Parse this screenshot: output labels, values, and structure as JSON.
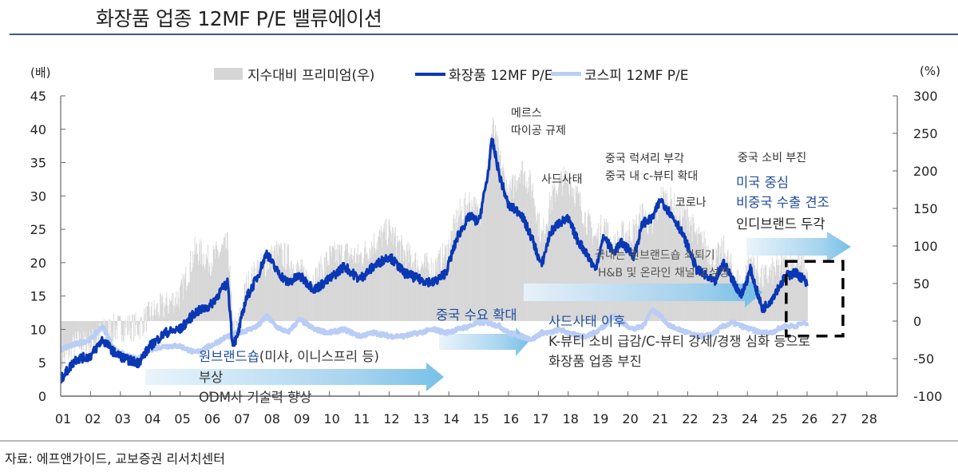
{
  "title": "화장품 업종 12MF P/E 밸류에이션",
  "source": "자료: 에프앤가이드, 교보증권 리서치센터",
  "chart_data": {
    "type": "line",
    "title": "화장품 업종 12MF P/E 밸류에이션",
    "left_unit": "(배)",
    "right_unit": "(%)",
    "xlabel": "",
    "ylabel_left": "P/E (배)",
    "ylabel_right": "지수대비 프리미엄 (%)",
    "ylim_left": [
      0,
      45
    ],
    "ylim_right": [
      -100,
      300
    ],
    "left_ticks": [
      "0",
      "5",
      "10",
      "15",
      "20",
      "25",
      "30",
      "35",
      "40",
      "45"
    ],
    "right_ticks": [
      "-100",
      "-50",
      "0",
      "50",
      "100",
      "150",
      "200",
      "250",
      "300"
    ],
    "x_range": [
      2001,
      2028.9
    ],
    "x_ticks": [
      "01",
      "02",
      "03",
      "04",
      "05",
      "06",
      "07",
      "08",
      "09",
      "10",
      "11",
      "12",
      "13",
      "14",
      "15",
      "16",
      "17",
      "18",
      "19",
      "20",
      "21",
      "22",
      "23",
      "24",
      "25",
      "26",
      "27",
      "28"
    ],
    "grid": false,
    "legend_position": "top-center",
    "legend": [
      {
        "label": "지수대비 프리미엄(우)",
        "kind": "area",
        "color": "#d6d6d6"
      },
      {
        "label": "화장품 12MF P/E",
        "kind": "line",
        "color": "#0a37b4"
      },
      {
        "label": "코스피 12MF P/E",
        "kind": "line",
        "color": "#b9cdf5"
      }
    ],
    "x": [
      2001.0,
      2001.5,
      2002.0,
      2002.4,
      2002.8,
      2003.2,
      2003.6,
      2004.0,
      2004.5,
      2005.0,
      2005.5,
      2006.0,
      2006.4,
      2006.6,
      2006.75,
      2006.9,
      2007.2,
      2007.6,
      2007.9,
      2008.2,
      2008.6,
      2009.0,
      2009.5,
      2010.0,
      2010.5,
      2011.0,
      2011.5,
      2012.0,
      2012.5,
      2013.0,
      2013.5,
      2013.9,
      2014.3,
      2014.7,
      2015.0,
      2015.3,
      2015.45,
      2015.7,
      2016.0,
      2016.4,
      2016.8,
      2017.1,
      2017.4,
      2017.7,
      2018.0,
      2018.3,
      2018.6,
      2018.9,
      2019.2,
      2019.5,
      2019.8,
      2020.2,
      2020.5,
      2020.8,
      2021.1,
      2021.4,
      2021.7,
      2022.0,
      2022.3,
      2022.6,
      2022.9,
      2023.2,
      2023.5,
      2023.8,
      2024.1,
      2024.5,
      2024.8,
      2025.0,
      2025.3,
      2025.6,
      2025.9,
      2026.0
    ],
    "series": [
      {
        "name": "화장품 12MF P/E",
        "axis": "left",
        "values": [
          2.5,
          5.5,
          6.0,
          8.5,
          6.5,
          5.5,
          5.0,
          7.5,
          9.5,
          10.0,
          12.5,
          13.5,
          16.0,
          17.0,
          8.0,
          8.5,
          14.5,
          18.0,
          21.5,
          19.0,
          17.0,
          18.0,
          16.0,
          17.5,
          19.5,
          17.5,
          19.5,
          21.0,
          18.5,
          17.5,
          17.0,
          18.5,
          24.0,
          27.0,
          26.0,
          33.0,
          38.5,
          33.0,
          28.5,
          27.5,
          23.5,
          19.5,
          24.5,
          26.0,
          26.5,
          23.5,
          21.5,
          19.0,
          24.0,
          21.5,
          23.0,
          21.0,
          26.0,
          26.5,
          29.5,
          27.5,
          25.5,
          22.5,
          19.0,
          18.0,
          17.0,
          20.0,
          17.5,
          15.0,
          19.0,
          13.0,
          14.5,
          16.0,
          18.0,
          18.5,
          17.5,
          16.5
        ]
      },
      {
        "name": "코스피 12MF P/E",
        "axis": "left",
        "values": [
          7.0,
          7.8,
          8.5,
          10.5,
          7.0,
          6.0,
          5.5,
          7.0,
          7.5,
          7.5,
          6.5,
          7.5,
          8.5,
          9.0,
          9.0,
          9.5,
          9.8,
          10.5,
          12.0,
          10.5,
          9.5,
          11.5,
          10.0,
          9.5,
          10.0,
          9.0,
          9.5,
          9.0,
          9.0,
          9.5,
          10.0,
          9.5,
          10.0,
          10.5,
          11.0,
          11.0,
          10.8,
          10.5,
          9.5,
          9.0,
          8.5,
          9.5,
          9.5,
          10.0,
          9.5,
          9.0,
          9.0,
          9.5,
          10.5,
          12.0,
          11.0,
          10.0,
          10.5,
          13.0,
          12.0,
          10.5,
          10.0,
          9.5,
          9.0,
          9.0,
          9.5,
          10.5,
          11.0,
          10.5,
          10.0,
          9.5,
          9.5,
          10.0,
          10.5,
          10.5,
          11.0,
          10.5
        ]
      },
      {
        "name": "지수대비 프리미엄(우)",
        "axis": "right",
        "kind": "area",
        "values": [
          -55,
          -30,
          -30,
          -15,
          -10,
          -8,
          -8,
          10,
          20,
          35,
          95,
          80,
          95,
          100,
          -10,
          -12,
          45,
          70,
          78,
          90,
          85,
          65,
          55,
          85,
          90,
          85,
          105,
          120,
          90,
          75,
          70,
          90,
          140,
          160,
          140,
          200,
          260,
          215,
          165,
          205,
          175,
          110,
          160,
          185,
          190,
          165,
          135,
          110,
          130,
          95,
          115,
          120,
          145,
          120,
          165,
          160,
          145,
          140,
          110,
          100,
          80,
          95,
          65,
          45,
          85,
          55,
          65,
          70,
          75,
          80,
          70,
          65
        ]
      }
    ],
    "highlight_box": {
      "x_from": 2025.3,
      "x_to": 2027.2,
      "y_left_from": 9.0,
      "y_left_to": 20.2,
      "style": "dashed"
    },
    "annotations": [
      {
        "id": "mers",
        "lines": [
          "메르스",
          "따이공 규제"
        ],
        "color": "dark"
      },
      {
        "id": "thaad",
        "lines": [
          "사드사태"
        ],
        "color": "dark"
      },
      {
        "id": "luxury",
        "lines": [
          "중국 럭셔리 부각",
          "중국 내 c-뷰티 확대"
        ],
        "color": "dark"
      },
      {
        "id": "corona",
        "lines": [
          "코로나"
        ],
        "color": "dark"
      },
      {
        "id": "china_weak",
        "lines": [
          "중국 소비 부진"
        ],
        "color": "dark"
      },
      {
        "id": "us_focus",
        "lines": [
          "미국 중심",
          "비중국 수출 견조"
        ],
        "color": "blue"
      },
      {
        "id": "indie",
        "lines": [
          "인디브랜드 두각"
        ],
        "color": "dark"
      },
      {
        "id": "domestic",
        "lines": [
          "국내는 원브랜드숍 쇠퇴기",
          "H&B 및 온라인 채널 고성장"
        ],
        "color": "dark"
      },
      {
        "id": "china_demand",
        "lines": [
          "중국 수요 확대"
        ],
        "color": "blue"
      },
      {
        "id": "after_thaad_title",
        "lines": [
          "사드사태 이후"
        ],
        "color": "blue"
      },
      {
        "id": "after_thaad_body",
        "lines": [
          "K-뷰티 소비 급감/C-뷰티 강세/경쟁 심화 등으로",
          "화장품 업종 부진"
        ],
        "color": "dark"
      },
      {
        "id": "onebrand_title",
        "lines": [
          "원브랜드숍"
        ],
        "color": "blue"
      },
      {
        "id": "onebrand_rest",
        "lines": [
          "(미샤, 이니스프리 등)"
        ],
        "color": "dark"
      },
      {
        "id": "onebrand_body",
        "lines": [
          "부상",
          "ODM사 기술력 향상"
        ],
        "color": "dark"
      }
    ]
  }
}
